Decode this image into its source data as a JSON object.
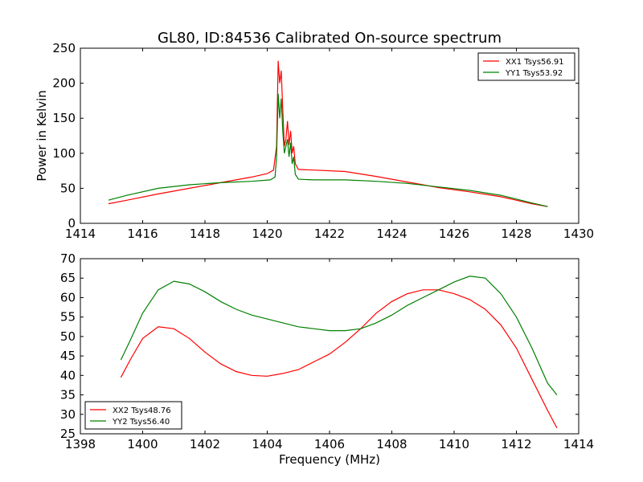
{
  "figure": {
    "title": "GL80, ID:84536 Calibrated On-source spectrum",
    "xlabel": "Frequency (MHz)"
  },
  "chart_data": [
    {
      "type": "line",
      "title": "GL80, ID:84536 Calibrated On-source spectrum",
      "ylabel": "Power in Kelvin",
      "xlabel": "",
      "xlim": [
        1414,
        1430
      ],
      "ylim": [
        0,
        250
      ],
      "xticks": [
        1414,
        1416,
        1418,
        1420,
        1422,
        1424,
        1426,
        1428,
        1430
      ],
      "yticks": [
        0,
        50,
        100,
        150,
        200,
        250
      ],
      "grid": false,
      "legend_position": "top-right",
      "series": [
        {
          "name": "XX1 Tsys56.91",
          "color": "#ff0000",
          "points": [
            [
              1414.9,
              28
            ],
            [
              1415.5,
              33
            ],
            [
              1416.5,
              42
            ],
            [
              1417.5,
              50
            ],
            [
              1418.5,
              58
            ],
            [
              1419.5,
              66
            ],
            [
              1420.0,
              71
            ],
            [
              1420.2,
              76
            ],
            [
              1420.3,
              110
            ],
            [
              1420.35,
              232
            ],
            [
              1420.4,
              200
            ],
            [
              1420.45,
              218
            ],
            [
              1420.5,
              160
            ],
            [
              1420.55,
              110
            ],
            [
              1420.6,
              120
            ],
            [
              1420.65,
              146
            ],
            [
              1420.7,
              112
            ],
            [
              1420.75,
              132
            ],
            [
              1420.8,
              100
            ],
            [
              1420.85,
              110
            ],
            [
              1420.9,
              85
            ],
            [
              1421.0,
              77
            ],
            [
              1421.5,
              76
            ],
            [
              1422.5,
              74
            ],
            [
              1423.5,
              67
            ],
            [
              1424.5,
              59
            ],
            [
              1425.5,
              51
            ],
            [
              1426.5,
              45
            ],
            [
              1427.5,
              38
            ],
            [
              1428.5,
              28
            ],
            [
              1429.0,
              24
            ]
          ]
        },
        {
          "name": "YY1 Tsys53.92",
          "color": "#008000",
          "points": [
            [
              1414.9,
              33
            ],
            [
              1415.5,
              40
            ],
            [
              1416.5,
              50
            ],
            [
              1417.5,
              55
            ],
            [
              1418.5,
              58
            ],
            [
              1419.5,
              60
            ],
            [
              1420.1,
              62
            ],
            [
              1420.25,
              66
            ],
            [
              1420.3,
              95
            ],
            [
              1420.35,
              185
            ],
            [
              1420.4,
              150
            ],
            [
              1420.45,
              178
            ],
            [
              1420.5,
              130
            ],
            [
              1420.55,
              100
            ],
            [
              1420.6,
              110
            ],
            [
              1420.65,
              120
            ],
            [
              1420.7,
              95
            ],
            [
              1420.75,
              115
            ],
            [
              1420.8,
              85
            ],
            [
              1420.85,
              95
            ],
            [
              1420.9,
              70
            ],
            [
              1421.0,
              63
            ],
            [
              1421.5,
              62
            ],
            [
              1422.5,
              62
            ],
            [
              1423.5,
              60
            ],
            [
              1424.5,
              57
            ],
            [
              1425.5,
              52
            ],
            [
              1426.5,
              47
            ],
            [
              1427.5,
              40
            ],
            [
              1428.5,
              29
            ],
            [
              1429.0,
              24
            ]
          ]
        }
      ]
    },
    {
      "type": "line",
      "title": "",
      "ylabel": "",
      "xlabel": "Frequency (MHz)",
      "xlim": [
        1398,
        1414
      ],
      "ylim": [
        25,
        70
      ],
      "xticks": [
        1398,
        1400,
        1402,
        1404,
        1406,
        1408,
        1410,
        1412,
        1414
      ],
      "yticks": [
        25,
        30,
        35,
        40,
        45,
        50,
        55,
        60,
        65,
        70
      ],
      "grid": false,
      "legend_position": "bottom-left",
      "series": [
        {
          "name": "XX2 Tsys48.76",
          "color": "#ff0000",
          "points": [
            [
              1399.3,
              39.5
            ],
            [
              1399.6,
              44
            ],
            [
              1400.0,
              49.5
            ],
            [
              1400.5,
              52.5
            ],
            [
              1401.0,
              52
            ],
            [
              1401.5,
              49.5
            ],
            [
              1402.0,
              46
            ],
            [
              1402.5,
              43
            ],
            [
              1403.0,
              41
            ],
            [
              1403.5,
              40
            ],
            [
              1404.0,
              39.8
            ],
            [
              1404.5,
              40.5
            ],
            [
              1405.0,
              41.5
            ],
            [
              1405.5,
              43.5
            ],
            [
              1406.0,
              45.5
            ],
            [
              1406.5,
              48.5
            ],
            [
              1407.0,
              52
            ],
            [
              1407.5,
              56
            ],
            [
              1408.0,
              59
            ],
            [
              1408.5,
              61
            ],
            [
              1409.0,
              62
            ],
            [
              1409.5,
              62
            ],
            [
              1410.0,
              61
            ],
            [
              1410.5,
              59.5
            ],
            [
              1411.0,
              57
            ],
            [
              1411.5,
              53
            ],
            [
              1412.0,
              47
            ],
            [
              1412.5,
              39
            ],
            [
              1413.0,
              31
            ],
            [
              1413.3,
              26.5
            ]
          ]
        },
        {
          "name": "YY2 Tsys56.40",
          "color": "#008000",
          "points": [
            [
              1399.3,
              44
            ],
            [
              1399.6,
              49
            ],
            [
              1400.0,
              56
            ],
            [
              1400.5,
              62
            ],
            [
              1401.0,
              64.2
            ],
            [
              1401.5,
              63.5
            ],
            [
              1402.0,
              61.5
            ],
            [
              1402.5,
              59
            ],
            [
              1403.0,
              57
            ],
            [
              1403.5,
              55.5
            ],
            [
              1404.0,
              54.5
            ],
            [
              1404.5,
              53.5
            ],
            [
              1405.0,
              52.5
            ],
            [
              1405.5,
              52
            ],
            [
              1406.0,
              51.5
            ],
            [
              1406.5,
              51.5
            ],
            [
              1407.0,
              52
            ],
            [
              1407.5,
              53.5
            ],
            [
              1408.0,
              55.5
            ],
            [
              1408.5,
              58
            ],
            [
              1409.0,
              60
            ],
            [
              1409.5,
              62
            ],
            [
              1410.0,
              64
            ],
            [
              1410.5,
              65.5
            ],
            [
              1411.0,
              65
            ],
            [
              1411.5,
              61
            ],
            [
              1412.0,
              55
            ],
            [
              1412.5,
              47
            ],
            [
              1413.0,
              38
            ],
            [
              1413.3,
              35
            ]
          ]
        }
      ]
    }
  ]
}
